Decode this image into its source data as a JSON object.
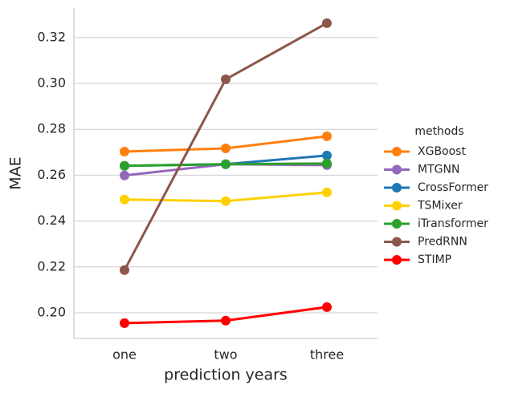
{
  "chart_data": {
    "type": "line",
    "x_label": "prediction years",
    "y_label": "MAE",
    "categories": [
      "one",
      "two",
      "three"
    ],
    "ylim": [
      0.1888,
      0.3329
    ],
    "yticks": [
      {
        "value": 0.2,
        "label": "0.20"
      },
      0.22,
      0.24,
      0.26,
      0.28,
      {
        "value": 0.3,
        "label": "0.30"
      },
      0.32
    ],
    "grid": true,
    "legend_title": "methods",
    "legend_position": "right",
    "series": [
      {
        "name": "XGBoost",
        "color": "#ff7f0e",
        "values": [
          0.2703,
          0.2717,
          0.277
        ]
      },
      {
        "name": "MTGNN",
        "color": "#9467bd",
        "values": [
          0.2599,
          0.2648,
          0.2644
        ]
      },
      {
        "name": "CrossFormer",
        "color": "#1f77b4",
        "values": [
          0.2641,
          0.2648,
          0.2686
        ]
      },
      {
        "name": "TSMixer",
        "color": "#ffd000",
        "values": [
          0.2494,
          0.2487,
          0.2525
        ]
      },
      {
        "name": "iTransformer",
        "color": "#2ca02c",
        "values": [
          0.2641,
          0.2648,
          0.2651
        ]
      },
      {
        "name": "PredRNN",
        "color": "#8c564b",
        "values": [
          0.2186,
          0.3018,
          0.3263
        ]
      },
      {
        "name": "STIMP",
        "color": "#ff0000",
        "values": [
          0.1955,
          0.1966,
          0.2025
        ]
      }
    ]
  }
}
